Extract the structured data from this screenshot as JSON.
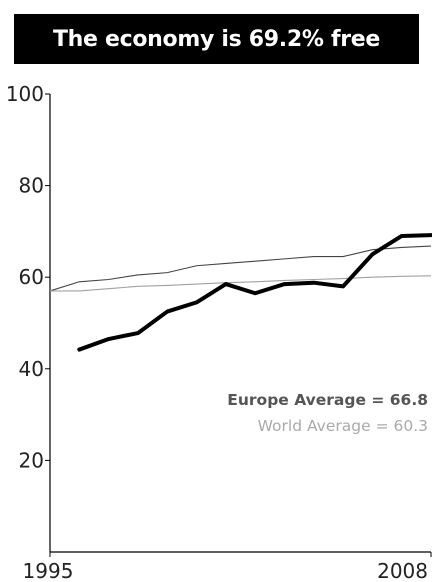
{
  "chart_data": {
    "type": "line",
    "title": "The economy is 69.2% free",
    "x": [
      1996,
      1997,
      1998,
      1999,
      2000,
      2001,
      2002,
      2003,
      2004,
      2005,
      2006,
      2007,
      2008
    ],
    "xlim": [
      1995,
      2008
    ],
    "ylim": [
      0,
      100
    ],
    "y_ticks": [
      20,
      40,
      60,
      80,
      100
    ],
    "x_tick_labels": [
      "1995",
      "2008"
    ],
    "series": [
      {
        "name": "",
        "color": "#000000",
        "values": [
          44.2,
          46.5,
          47.8,
          52.5,
          54.5,
          58.5,
          56.5,
          58.5,
          58.8,
          58.0,
          65.0,
          69.0,
          69.2
        ]
      }
    ],
    "reference_lines": [
      {
        "name": "Europe Average",
        "color": "#444444",
        "x": [
          1995,
          1996,
          1997,
          1998,
          1999,
          2000,
          2001,
          2002,
          2003,
          2004,
          2005,
          2006,
          2007,
          2008
        ],
        "values": [
          57.0,
          59.0,
          59.5,
          60.5,
          61.0,
          62.5,
          63.0,
          63.5,
          64.0,
          64.5,
          64.5,
          66.0,
          66.5,
          66.8
        ]
      },
      {
        "name": "World Average",
        "color": "#a0a0a0",
        "x": [
          1995,
          1996,
          1997,
          1998,
          1999,
          2000,
          2001,
          2002,
          2003,
          2004,
          2005,
          2006,
          2007,
          2008
        ],
        "values": [
          57.0,
          57.0,
          57.5,
          58.0,
          58.2,
          58.5,
          58.8,
          59.0,
          59.3,
          59.5,
          59.7,
          60.0,
          60.2,
          60.3
        ]
      }
    ],
    "annotations": [
      {
        "text": "Europe Average = 66.8",
        "color": "#555555"
      },
      {
        "text": "World Average = 60.3",
        "color": "#aaaaaa"
      }
    ],
    "grid": false,
    "legend": "none"
  }
}
